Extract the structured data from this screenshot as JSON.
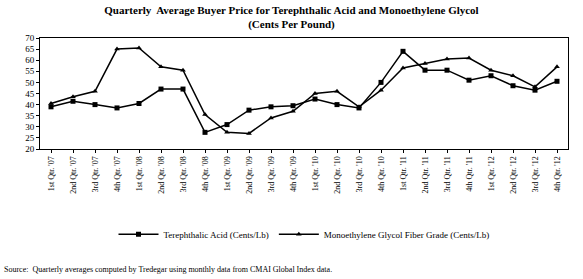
{
  "chart_data": {
    "type": "line",
    "title": "Quarterly  Average Buyer Price for Terephthalic Acid and Monoethylene Glycol",
    "subtitle": "(Cents Per Pound)",
    "categories": [
      "1st Qtr. '07",
      "2nd Qtr. '07",
      "3rd Qtr. '07",
      "4th Qtr. '07",
      "1st Qtr. '08",
      "2nd Qtr. '08",
      "3rd Qtr. '08",
      "4th Qtr. '08",
      "1st Qtr. '09",
      "2nd Qtr. '09",
      "3rd Qtr. '09",
      "4th Qtr. '09",
      "1st Qtr. '10",
      "2nd Qtr. '10",
      "3rd Qtr. '10",
      "4th Qtr. '10",
      "1st Qtr. '11",
      "2nd Qtr. '11",
      "3rd Qtr. '11",
      "4th Qtr. '11",
      "1st Qtr. '12",
      "2nd Qtr. '12",
      "3rd Qtr. '12",
      "4th Qtr. '12"
    ],
    "series": [
      {
        "name": "Terephthalic Acid (Cents/Lb)",
        "color": "#000000",
        "marker": "square",
        "values": [
          39,
          41.5,
          40,
          38.5,
          40.5,
          47,
          47,
          27.5,
          31,
          37.5,
          39,
          39.5,
          42.5,
          40,
          38.5,
          50,
          64,
          55.5,
          55.5,
          51,
          53,
          48.5,
          46.5,
          50.5
        ]
      },
      {
        "name": "Monoethylene Glycol Fiber Grade (Cents/Lb)",
        "color": "#000000",
        "marker": "triangle-up",
        "values": [
          40.5,
          43.5,
          46,
          65,
          65.5,
          57,
          55.5,
          35.5,
          27.5,
          27,
          34,
          37,
          45,
          46,
          39,
          46.5,
          56.5,
          58.5,
          60.5,
          61,
          55.5,
          53,
          48,
          57
        ]
      }
    ],
    "ylim": [
      20,
      70
    ],
    "yticks": [
      20,
      25,
      30,
      35,
      40,
      45,
      50,
      55,
      60,
      65,
      70
    ],
    "grid": false,
    "legend": "bottom",
    "annotations": [
      "Source:  Quarterly averages computed by Tredegar using monthly data from CMAI Global Index data."
    ]
  }
}
